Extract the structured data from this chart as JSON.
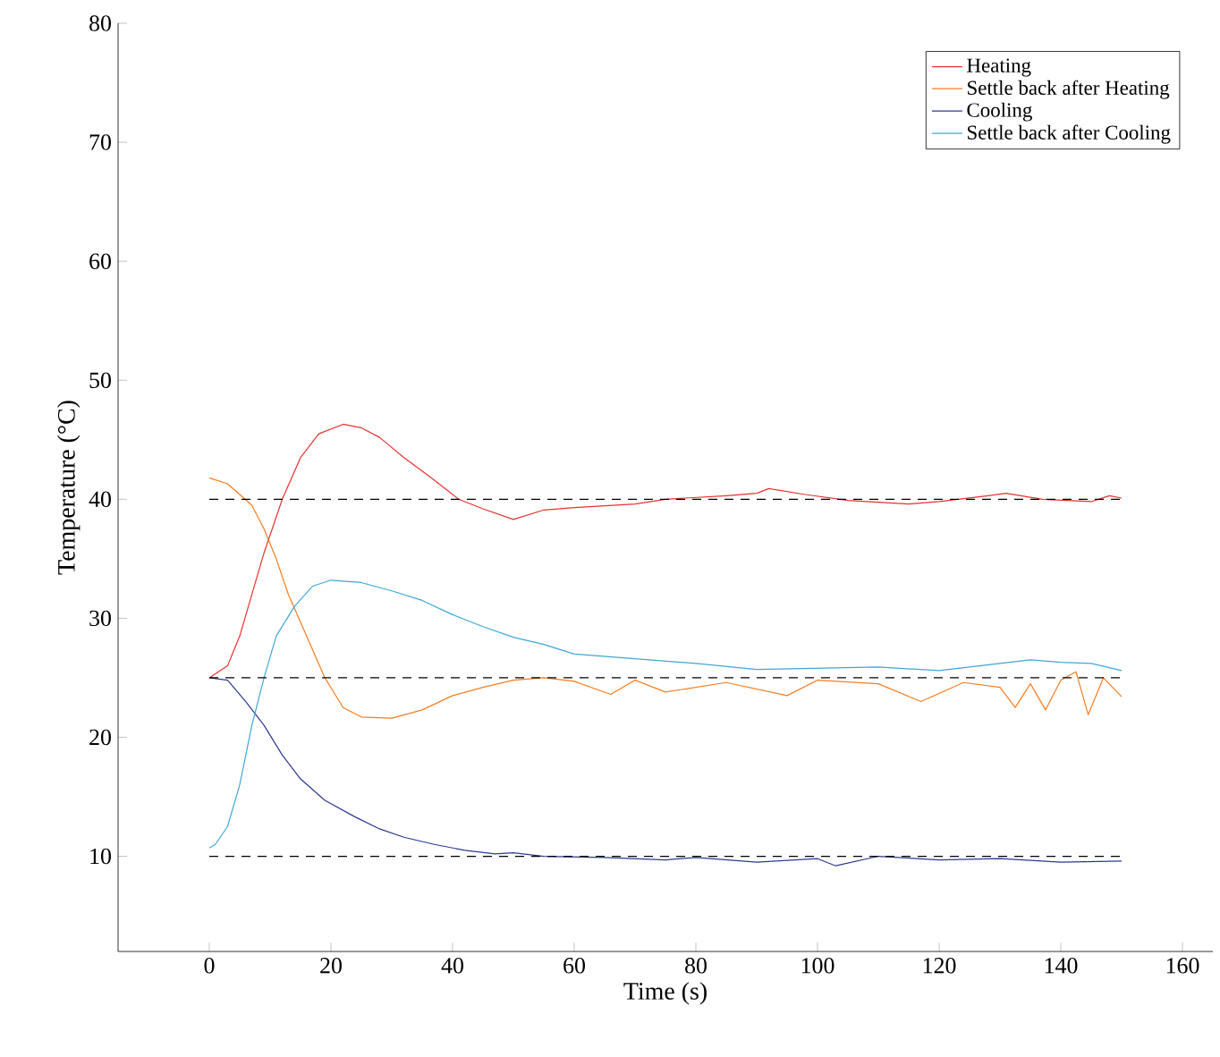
{
  "chart_data": {
    "type": "line",
    "xlabel": "Time (s)",
    "ylabel": "Temperature (°C)",
    "xlim": [
      -15,
      165
    ],
    "ylim": [
      2,
      80
    ],
    "xticks": [
      0,
      20,
      40,
      60,
      80,
      100,
      120,
      140,
      160
    ],
    "yticks": [
      10,
      20,
      30,
      40,
      50,
      60,
      70,
      80
    ],
    "legend": "top right",
    "marker": "none",
    "line_style": "solid",
    "ref_lines": [
      {
        "axis": "y",
        "value": 40,
        "color": "#000000",
        "line_style": "dashed"
      },
      {
        "axis": "y",
        "value": 25,
        "color": "#000000",
        "line_style": "dashed"
      },
      {
        "axis": "y",
        "value": 10,
        "color": "#000000",
        "line_style": "dashed"
      }
    ],
    "series": [
      {
        "name": "Heating",
        "color": "#e8312d",
        "x": [
          0,
          3,
          5,
          7,
          9,
          12,
          15,
          18,
          22,
          25,
          28,
          32,
          36,
          41,
          45,
          50,
          55,
          60,
          70,
          75,
          85,
          90,
          92,
          98,
          105,
          115,
          120,
          128,
          131,
          137,
          145,
          148,
          150
        ],
        "values": [
          25,
          26,
          28.5,
          32,
          35.5,
          40,
          43.5,
          45.5,
          46.3,
          46,
          45.2,
          43.5,
          42,
          40,
          39.2,
          38.3,
          39.1,
          39.3,
          39.6,
          40,
          40.3,
          40.5,
          40.9,
          40.4,
          39.9,
          39.6,
          39.8,
          40.3,
          40.5,
          40,
          39.8,
          40.3,
          40.1
        ]
      },
      {
        "name": "Settle back after Heating",
        "color": "#f47c20",
        "x": [
          0,
          3,
          7,
          9,
          11,
          13,
          16,
          19,
          22,
          25,
          30,
          35,
          40,
          45,
          50,
          55,
          60,
          66,
          70,
          75,
          85,
          95,
          100,
          110,
          117,
          124,
          130,
          132.5,
          135,
          137.5,
          140,
          142.5,
          144.5,
          147,
          150
        ],
        "values": [
          41.8,
          41.3,
          39.5,
          37.5,
          35,
          32,
          28.5,
          25,
          22.5,
          21.7,
          21.6,
          22.3,
          23.5,
          24.2,
          24.8,
          25,
          24.7,
          23.6,
          24.8,
          23.8,
          24.6,
          23.5,
          24.8,
          24.5,
          23,
          24.6,
          24.2,
          22.5,
          24.5,
          22.3,
          24.8,
          25.5,
          21.9,
          25,
          23.4
        ]
      },
      {
        "name": "Cooling",
        "color": "#2b3990",
        "x": [
          0,
          3,
          6,
          9,
          12,
          15,
          19,
          24,
          28,
          32,
          37,
          42,
          47,
          50,
          55,
          65,
          75,
          80,
          90,
          100,
          103,
          110,
          120,
          130,
          140,
          150
        ],
        "values": [
          25,
          24.8,
          23,
          21,
          18.5,
          16.5,
          14.7,
          13.3,
          12.3,
          11.6,
          11,
          10.5,
          10.2,
          10.3,
          10,
          9.9,
          9.7,
          9.9,
          9.5,
          9.8,
          9.2,
          10,
          9.7,
          9.8,
          9.5,
          9.6
        ]
      },
      {
        "name": "Settle back after Cooling",
        "color": "#3fa7d6",
        "x": [
          0,
          1,
          3,
          5,
          7,
          9,
          11,
          14,
          17,
          20,
          25,
          30,
          35,
          40,
          45,
          50,
          55,
          60,
          70,
          80,
          90,
          100,
          110,
          120,
          130,
          135,
          140,
          145,
          150
        ],
        "values": [
          10.7,
          11,
          12.5,
          16,
          21,
          25,
          28.5,
          31,
          32.7,
          33.2,
          33,
          32.3,
          31.5,
          30.3,
          29.3,
          28.4,
          27.8,
          27,
          26.6,
          26.2,
          25.7,
          25.8,
          25.9,
          25.6,
          26.2,
          26.5,
          26.3,
          26.2,
          25.6
        ]
      }
    ]
  }
}
